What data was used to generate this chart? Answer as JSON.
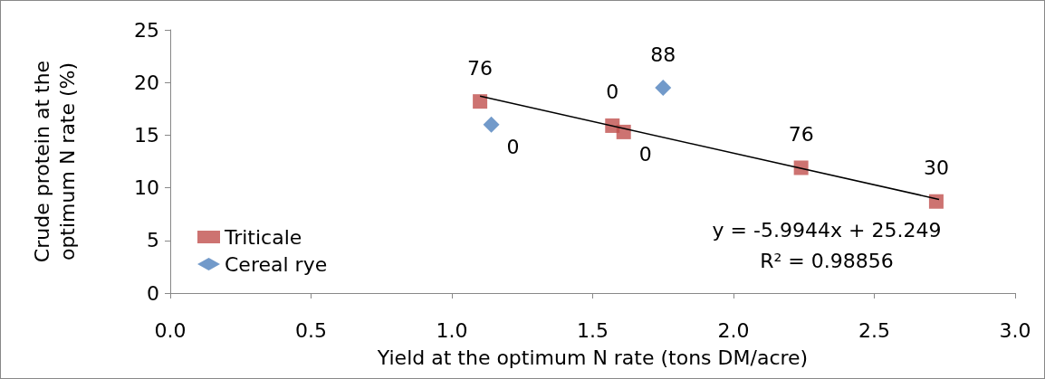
{
  "chart_data": {
    "type": "scatter",
    "xlabel": "Yield at the optimum N rate (tons DM/acre)",
    "ylabel": "Crude protein at the optimum N rate (%)",
    "xlim": [
      0,
      3
    ],
    "xticks": [
      {
        "value": 0,
        "label": "0.0"
      },
      {
        "value": 0.5,
        "label": "0.5"
      },
      {
        "value": 1,
        "label": "1.0"
      },
      {
        "value": 1.5,
        "label": "1.5"
      },
      {
        "value": 2,
        "label": "2.0"
      },
      {
        "value": 2.5,
        "label": "2.5"
      },
      {
        "value": 3,
        "label": "3.0"
      }
    ],
    "ylim": [
      0,
      25
    ],
    "yticks": [
      0,
      5,
      10,
      15,
      20,
      25
    ],
    "grid": false,
    "legend": "left",
    "series": [
      {
        "name": "Triticale",
        "color": "#c0504d",
        "marker": "square",
        "x": [
          1.1,
          1.57,
          1.61,
          2.24,
          2.72
        ],
        "values": [
          18.2,
          15.9,
          15.3,
          11.9,
          8.7
        ]
      },
      {
        "name": "Cereal rye",
        "color": "#4f81bd",
        "marker": "diamond",
        "x": [
          1.14,
          1.75
        ],
        "values": [
          16.0,
          19.5
        ]
      },
      {
        "type": "line",
        "color": "#000000",
        "line_style": "solid",
        "marker": "none",
        "x": [
          1.1,
          2.73
        ],
        "values": [
          18.7,
          8.9
        ]
      }
    ],
    "annotations": [
      "y = -5.9944x + 25.249",
      "R² = 0.98856",
      {
        "text": "76",
        "x": 1.1,
        "y": 18.2
      },
      {
        "text": "0",
        "x": 1.57,
        "y": 15.9
      },
      {
        "text": "0",
        "x": 1.61,
        "y": 15.3
      },
      {
        "text": "76",
        "x": 2.24,
        "y": 11.9
      },
      {
        "text": "30",
        "x": 2.72,
        "y": 8.7
      },
      {
        "text": "0",
        "x": 1.14,
        "y": 16.0
      },
      {
        "text": "88",
        "x": 1.75,
        "y": 19.5
      }
    ]
  }
}
